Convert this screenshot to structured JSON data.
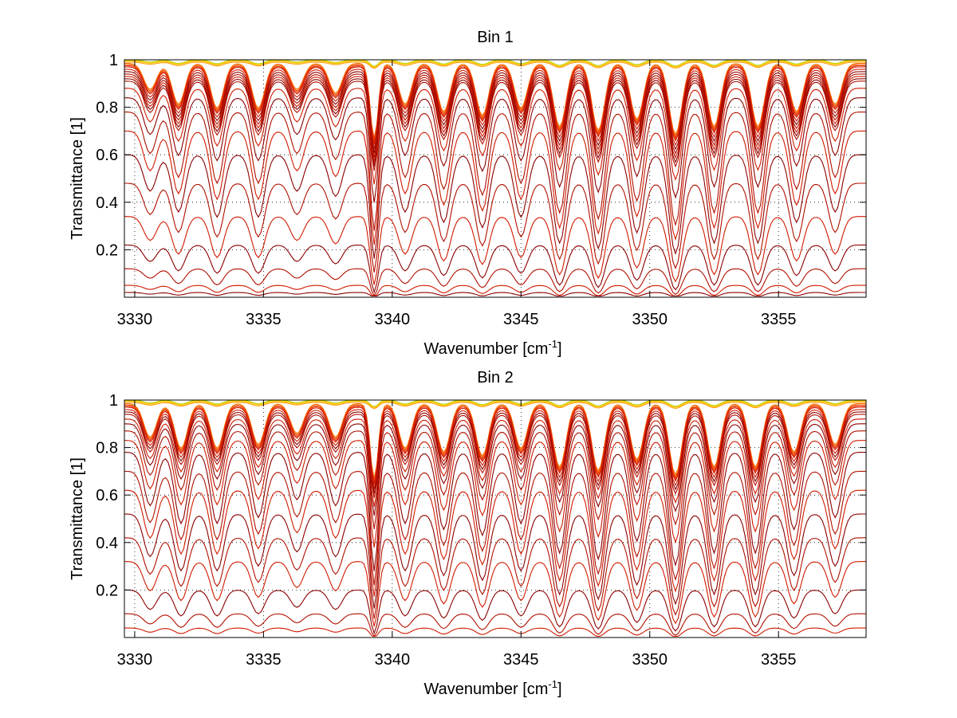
{
  "figure": {
    "background": "#ffffff"
  },
  "chart_data": [
    {
      "type": "line",
      "title": "Bin 1",
      "xlabel": "Wavenumber [cm",
      "xlabel_sup": "-1",
      "xlabel_end": "]",
      "ylabel": "Transmittance [1]",
      "xlim": [
        3329.6,
        3358.4
      ],
      "ylim": [
        0,
        1.0
      ],
      "xticks": [
        3330,
        3335,
        3340,
        3345,
        3350,
        3355
      ],
      "xticklabels": [
        "3330",
        "3335",
        "3340",
        "3345",
        "3350",
        "3355"
      ],
      "yticks": [
        0.2,
        0.4,
        0.6,
        0.8,
        1.0
      ],
      "yticklabels": [
        "0.2",
        "0.4",
        "0.6",
        "0.8",
        "1"
      ],
      "grid": true,
      "grid_style": "dotted",
      "x_sample_step": 0.1,
      "series_note_levels": [
        1.0,
        0.998,
        0.995,
        0.99,
        0.985,
        0.98,
        0.975,
        0.97,
        0.96,
        0.95,
        0.94,
        0.93,
        0.92,
        0.91,
        0.88,
        0.84,
        0.78,
        0.7,
        0.6,
        0.48,
        0.34,
        0.22,
        0.12,
        0.05,
        0.02
      ],
      "line_strengths": [
        {
          "x": 3330.6,
          "d": 0.35
        },
        {
          "x": 3331.7,
          "d": 0.55
        },
        {
          "x": 3333.2,
          "d": 0.6
        },
        {
          "x": 3334.8,
          "d": 0.6
        },
        {
          "x": 3336.3,
          "d": 0.35
        },
        {
          "x": 3337.8,
          "d": 0.4
        },
        {
          "x": 3339.3,
          "d": 1.0
        },
        {
          "x": 3340.5,
          "d": 0.55
        },
        {
          "x": 3342.0,
          "d": 0.65
        },
        {
          "x": 3343.5,
          "d": 0.7
        },
        {
          "x": 3345.0,
          "d": 0.6
        },
        {
          "x": 3346.5,
          "d": 0.85
        },
        {
          "x": 3348.0,
          "d": 0.9
        },
        {
          "x": 3349.5,
          "d": 0.75
        },
        {
          "x": 3351.0,
          "d": 0.95
        },
        {
          "x": 3352.5,
          "d": 0.85
        },
        {
          "x": 3354.2,
          "d": 0.85
        },
        {
          "x": 3355.7,
          "d": 0.65
        },
        {
          "x": 3357.2,
          "d": 0.55
        }
      ],
      "colors": [
        "#8b0000",
        "#b01000",
        "#d01a00",
        "#e83000",
        "#f05000",
        "#f87000",
        "#ff9a00",
        "#ffc000",
        "#e0e000",
        "#9acd32"
      ]
    },
    {
      "type": "line",
      "title": "Bin 2",
      "xlabel": "Wavenumber [cm",
      "xlabel_sup": "-1",
      "xlabel_end": "]",
      "ylabel": "Transmittance [1]",
      "xlim": [
        3329.6,
        3358.4
      ],
      "ylim": [
        0,
        1.0
      ],
      "xticks": [
        3330,
        3335,
        3340,
        3345,
        3350,
        3355
      ],
      "xticklabels": [
        "3330",
        "3335",
        "3340",
        "3345",
        "3350",
        "3355"
      ],
      "yticks": [
        0.2,
        0.4,
        0.6,
        0.8,
        1.0
      ],
      "yticklabels": [
        "0.2",
        "0.4",
        "0.6",
        "0.8",
        "1"
      ],
      "grid": true,
      "grid_style": "dotted",
      "x_sample_step": 0.1,
      "series_note_levels": [
        1.0,
        0.998,
        0.995,
        0.99,
        0.985,
        0.98,
        0.975,
        0.97,
        0.96,
        0.95,
        0.94,
        0.92,
        0.9,
        0.87,
        0.83,
        0.78,
        0.7,
        0.62,
        0.52,
        0.42,
        0.32,
        0.2,
        0.1,
        0.04
      ],
      "line_strengths": [
        {
          "x": 3330.6,
          "d": 0.45
        },
        {
          "x": 3331.8,
          "d": 0.6
        },
        {
          "x": 3333.2,
          "d": 0.6
        },
        {
          "x": 3334.8,
          "d": 0.55
        },
        {
          "x": 3336.3,
          "d": 0.4
        },
        {
          "x": 3337.8,
          "d": 0.45
        },
        {
          "x": 3339.3,
          "d": 1.0
        },
        {
          "x": 3340.5,
          "d": 0.6
        },
        {
          "x": 3342.0,
          "d": 0.65
        },
        {
          "x": 3343.5,
          "d": 0.7
        },
        {
          "x": 3345.0,
          "d": 0.6
        },
        {
          "x": 3346.5,
          "d": 0.85
        },
        {
          "x": 3348.0,
          "d": 0.9
        },
        {
          "x": 3349.5,
          "d": 0.75
        },
        {
          "x": 3351.0,
          "d": 0.95
        },
        {
          "x": 3352.5,
          "d": 0.85
        },
        {
          "x": 3354.1,
          "d": 0.85
        },
        {
          "x": 3355.6,
          "d": 0.65
        },
        {
          "x": 3357.2,
          "d": 0.55
        }
      ],
      "colors": [
        "#8b0000",
        "#b01000",
        "#d01a00",
        "#e83000",
        "#f05000",
        "#f87000",
        "#ff9a00",
        "#ffc000",
        "#e0e000",
        "#9acd32"
      ]
    }
  ]
}
